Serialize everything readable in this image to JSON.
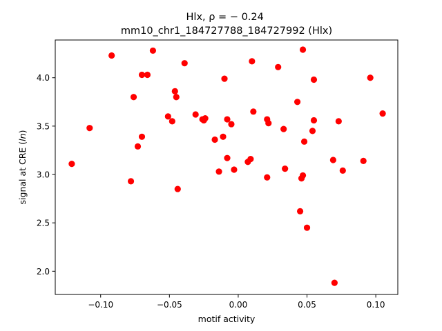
{
  "chart_data": {
    "type": "scatter",
    "title_line1": "Hlx, ρ = − 0.24",
    "title_line2": "mm10_chr1_184727788_184727992 (Hlx)",
    "xlabel": "motif activity",
    "ylabel": "signal at CRE (ln)",
    "xlim": [
      -0.133,
      0.116
    ],
    "ylim": [
      1.76,
      4.39
    ],
    "xticks": [
      -0.1,
      -0.05,
      0.0,
      0.05,
      0.1
    ],
    "xtick_labels": [
      "−0.10",
      "−0.05",
      "0.00",
      "0.05",
      "0.10"
    ],
    "yticks": [
      2.0,
      2.5,
      3.0,
      3.5,
      4.0
    ],
    "ytick_labels": [
      "2.0",
      "2.5",
      "3.0",
      "3.5",
      "4.0"
    ],
    "grid": false,
    "marker_color": "#ff0000",
    "points": [
      {
        "x": -0.121,
        "y": 3.11
      },
      {
        "x": -0.108,
        "y": 3.48
      },
      {
        "x": -0.092,
        "y": 4.23
      },
      {
        "x": -0.078,
        "y": 2.93
      },
      {
        "x": -0.076,
        "y": 3.8
      },
      {
        "x": -0.073,
        "y": 3.29
      },
      {
        "x": -0.07,
        "y": 3.39
      },
      {
        "x": -0.07,
        "y": 4.03
      },
      {
        "x": -0.066,
        "y": 4.03
      },
      {
        "x": -0.062,
        "y": 4.28
      },
      {
        "x": -0.051,
        "y": 3.6
      },
      {
        "x": -0.048,
        "y": 3.55
      },
      {
        "x": -0.046,
        "y": 3.86
      },
      {
        "x": -0.045,
        "y": 3.8
      },
      {
        "x": -0.044,
        "y": 2.85
      },
      {
        "x": -0.039,
        "y": 4.15
      },
      {
        "x": -0.031,
        "y": 3.62
      },
      {
        "x": -0.026,
        "y": 3.57
      },
      {
        "x": -0.025,
        "y": 3.56
      },
      {
        "x": -0.024,
        "y": 3.58
      },
      {
        "x": -0.017,
        "y": 3.36
      },
      {
        "x": -0.014,
        "y": 3.03
      },
      {
        "x": -0.011,
        "y": 3.39
      },
      {
        "x": -0.01,
        "y": 3.99
      },
      {
        "x": -0.008,
        "y": 3.57
      },
      {
        "x": -0.008,
        "y": 3.17
      },
      {
        "x": -0.005,
        "y": 3.52
      },
      {
        "x": -0.003,
        "y": 3.05
      },
      {
        "x": 0.007,
        "y": 3.13
      },
      {
        "x": 0.009,
        "y": 3.16
      },
      {
        "x": 0.01,
        "y": 4.17
      },
      {
        "x": 0.011,
        "y": 3.65
      },
      {
        "x": 0.021,
        "y": 3.57
      },
      {
        "x": 0.021,
        "y": 2.97
      },
      {
        "x": 0.022,
        "y": 3.53
      },
      {
        "x": 0.029,
        "y": 4.11
      },
      {
        "x": 0.033,
        "y": 3.47
      },
      {
        "x": 0.034,
        "y": 3.06
      },
      {
        "x": 0.043,
        "y": 3.75
      },
      {
        "x": 0.045,
        "y": 2.62
      },
      {
        "x": 0.046,
        "y": 2.96
      },
      {
        "x": 0.047,
        "y": 4.29
      },
      {
        "x": 0.047,
        "y": 2.99
      },
      {
        "x": 0.048,
        "y": 3.34
      },
      {
        "x": 0.05,
        "y": 2.45
      },
      {
        "x": 0.054,
        "y": 3.45
      },
      {
        "x": 0.055,
        "y": 3.98
      },
      {
        "x": 0.055,
        "y": 3.56
      },
      {
        "x": 0.069,
        "y": 3.15
      },
      {
        "x": 0.07,
        "y": 1.88
      },
      {
        "x": 0.073,
        "y": 3.55
      },
      {
        "x": 0.076,
        "y": 3.04
      },
      {
        "x": 0.091,
        "y": 3.14
      },
      {
        "x": 0.096,
        "y": 4.0
      },
      {
        "x": 0.105,
        "y": 3.63
      }
    ]
  }
}
